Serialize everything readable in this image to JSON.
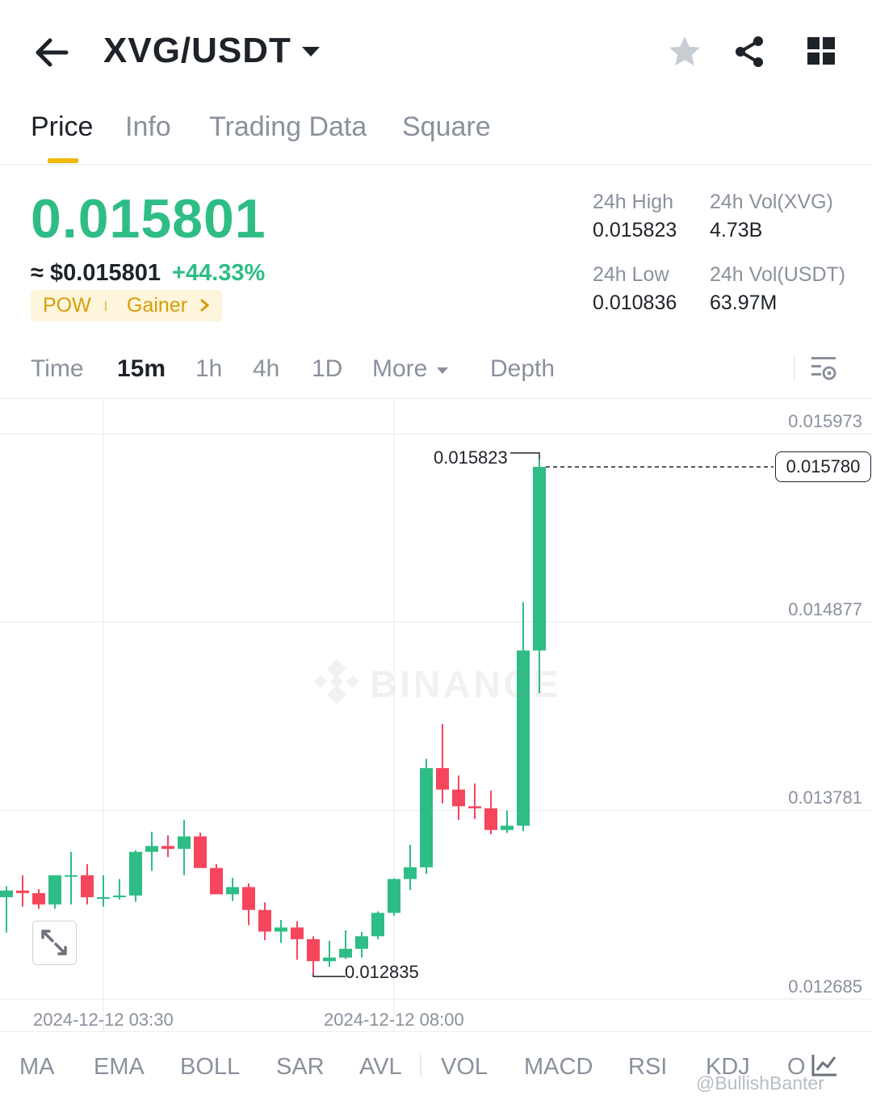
{
  "header": {
    "title": "XVG/USDT",
    "icons": [
      "back-arrow-icon",
      "dropdown-caret-icon",
      "star-icon",
      "share-icon",
      "grid-icon"
    ]
  },
  "tabs": [
    "Price",
    "Info",
    "Trading Data",
    "Square"
  ],
  "price": {
    "last": "0.015801",
    "usd": "≈ $0.015801",
    "change": "+44.33%",
    "tags": [
      "POW",
      "Gainer"
    ]
  },
  "stats": {
    "high_label": "24h High",
    "high_value": "0.015823",
    "low_label": "24h Low",
    "low_value": "0.010836",
    "vol_base_label": "24h Vol(XVG)",
    "vol_base_value": "4.73B",
    "vol_quote_label": "24h Vol(USDT)",
    "vol_quote_value": "63.97M"
  },
  "intervals": [
    "Time",
    "15m",
    "1h",
    "4h",
    "1D",
    "More",
    "Depth"
  ],
  "active_interval": "15m",
  "chart": {
    "y_ticks": [
      "0.015973",
      "0.014877",
      "0.013781",
      "0.012685"
    ],
    "x_ticks": [
      "2024-12-12 03:30",
      "2024-12-12 08:00"
    ],
    "current_price": "0.015780",
    "high_annotation": "0.015823",
    "low_annotation": "0.012835",
    "watermark": "BINANCE"
  },
  "chart_data": {
    "type": "candlestick",
    "interval": "15m",
    "ylim": [
      0.012685,
      0.015973
    ],
    "y_ticks": [
      0.015973,
      0.014877,
      0.013781,
      0.012685
    ],
    "x_ticks": [
      "2024-12-12 03:30",
      "2024-12-12 08:00"
    ],
    "current_price": 0.01578,
    "annotations": [
      {
        "label": "0.015823",
        "type": "high"
      },
      {
        "label": "0.012835",
        "type": "low"
      }
    ],
    "colors": {
      "up": "#2ebd85",
      "down": "#f6465d"
    },
    "candles": [
      {
        "o": 0.013277,
        "h": 0.013341,
        "l": 0.013072,
        "c": 0.013316
      },
      {
        "o": 0.013316,
        "h": 0.013405,
        "l": 0.013222,
        "c": 0.013301
      },
      {
        "o": 0.013301,
        "h": 0.013324,
        "l": 0.013209,
        "c": 0.013235
      },
      {
        "o": 0.013235,
        "h": 0.013401,
        "l": 0.013209,
        "c": 0.013405
      },
      {
        "o": 0.013405,
        "h": 0.013541,
        "l": 0.013235,
        "c": 0.013405
      },
      {
        "o": 0.013405,
        "h": 0.013469,
        "l": 0.013235,
        "c": 0.013277
      },
      {
        "o": 0.013277,
        "h": 0.013405,
        "l": 0.013222,
        "c": 0.013277
      },
      {
        "o": 0.013277,
        "h": 0.013383,
        "l": 0.013264,
        "c": 0.013287
      },
      {
        "o": 0.013287,
        "h": 0.01355,
        "l": 0.013251,
        "c": 0.013541
      },
      {
        "o": 0.013541,
        "h": 0.013658,
        "l": 0.01343,
        "c": 0.013575
      },
      {
        "o": 0.013575,
        "h": 0.013637,
        "l": 0.013511,
        "c": 0.013558
      },
      {
        "o": 0.013558,
        "h": 0.013727,
        "l": 0.013405,
        "c": 0.013631
      },
      {
        "o": 0.013631,
        "h": 0.013653,
        "l": 0.013464,
        "c": 0.013447
      },
      {
        "o": 0.013447,
        "h": 0.013469,
        "l": 0.013298,
        "c": 0.013294
      },
      {
        "o": 0.013294,
        "h": 0.01339,
        "l": 0.013255,
        "c": 0.013336
      },
      {
        "o": 0.013336,
        "h": 0.013358,
        "l": 0.013114,
        "c": 0.013203
      },
      {
        "o": 0.013203,
        "h": 0.013247,
        "l": 0.013027,
        "c": 0.013077
      },
      {
        "o": 0.013077,
        "h": 0.013145,
        "l": 0.013011,
        "c": 0.013101
      },
      {
        "o": 0.013101,
        "h": 0.013137,
        "l": 0.012913,
        "c": 0.013033
      },
      {
        "o": 0.013033,
        "h": 0.01305,
        "l": 0.012835,
        "c": 0.012905
      },
      {
        "o": 0.012905,
        "h": 0.013023,
        "l": 0.012872,
        "c": 0.012926
      },
      {
        "o": 0.012926,
        "h": 0.013084,
        "l": 0.012918,
        "c": 0.012977
      },
      {
        "o": 0.012977,
        "h": 0.013075,
        "l": 0.012926,
        "c": 0.01305
      },
      {
        "o": 0.01305,
        "h": 0.013195,
        "l": 0.013033,
        "c": 0.013186
      },
      {
        "o": 0.013186,
        "h": 0.013387,
        "l": 0.013169,
        "c": 0.013383
      },
      {
        "o": 0.013383,
        "h": 0.013582,
        "l": 0.013319,
        "c": 0.013451
      },
      {
        "o": 0.013451,
        "h": 0.014082,
        "l": 0.013413,
        "c": 0.014028
      },
      {
        "o": 0.014028,
        "h": 0.014285,
        "l": 0.013823,
        "c": 0.013903
      },
      {
        "o": 0.013903,
        "h": 0.013985,
        "l": 0.013726,
        "c": 0.013806
      },
      {
        "o": 0.013806,
        "h": 0.013938,
        "l": 0.013732,
        "c": 0.013794
      },
      {
        "o": 0.013794,
        "h": 0.013897,
        "l": 0.013643,
        "c": 0.013668
      },
      {
        "o": 0.013668,
        "h": 0.013782,
        "l": 0.013651,
        "c": 0.013693
      },
      {
        "o": 0.013693,
        "h": 0.014993,
        "l": 0.013661,
        "c": 0.014712
      },
      {
        "o": 0.014712,
        "h": 0.015823,
        "l": 0.014464,
        "c": 0.01578
      }
    ]
  },
  "indicators": [
    "MA",
    "EMA",
    "BOLL",
    "SAR",
    "AVL",
    "VOL",
    "MACD",
    "RSI",
    "KDJ",
    "O"
  ],
  "credit": "@BullishBanter"
}
